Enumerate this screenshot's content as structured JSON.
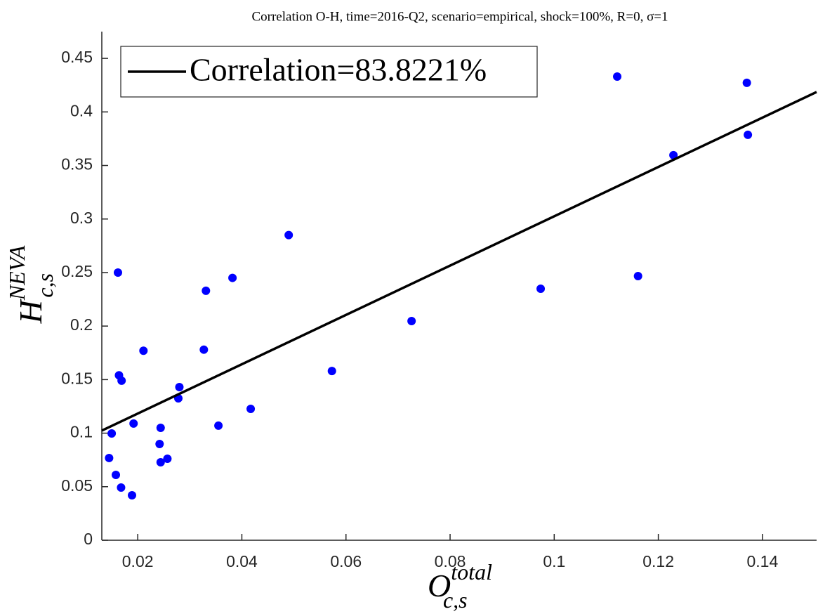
{
  "chart_data": {
    "type": "scatter",
    "title": "Correlation O-H, time=2016-Q2, scenario=empirical, shock=100%, R=0, σ=1",
    "xlabel": {
      "base": "O",
      "sub": "c,s",
      "sup": "total"
    },
    "ylabel": {
      "base": "H",
      "sub": "c,s",
      "sup": "NEVA"
    },
    "xlim": [
      0.0131,
      0.1504
    ],
    "ylim": [
      0,
      0.475
    ],
    "xticks": [
      0.02,
      0.04,
      0.06,
      0.08,
      0.1,
      0.12,
      0.14
    ],
    "yticks": [
      0,
      0.05,
      0.1,
      0.15,
      0.2,
      0.25,
      0.3,
      0.35,
      0.4,
      0.45
    ],
    "legend": "upper left",
    "series": [
      {
        "color": "#0000ff",
        "x": [
          0.0162,
          0.0145,
          0.015,
          0.0158,
          0.0164,
          0.0168,
          0.0169,
          0.0189,
          0.0192,
          0.0211,
          0.0242,
          0.0244,
          0.0244,
          0.0257,
          0.0278,
          0.028,
          0.0327,
          0.0331,
          0.0355,
          0.0382,
          0.0417,
          0.049,
          0.0573,
          0.0726,
          0.0974,
          0.1121,
          0.1161,
          0.1229,
          0.137,
          0.1372
        ],
        "values": [
          0.25,
          0.0768,
          0.0997,
          0.061,
          0.154,
          0.0492,
          0.149,
          0.042,
          0.109,
          0.177,
          0.0899,
          0.105,
          0.0728,
          0.0761,
          0.1325,
          0.143,
          0.178,
          0.233,
          0.107,
          0.245,
          0.1227,
          0.285,
          0.158,
          0.2047,
          0.2349,
          0.433,
          0.2467,
          0.3596,
          0.4272,
          0.3786
        ]
      }
    ],
    "fit": {
      "name": "Correlation=83.8221%",
      "color": "#000000",
      "x": [
        0.0131,
        0.1504
      ],
      "values": [
        0.1024,
        0.4186
      ]
    }
  }
}
